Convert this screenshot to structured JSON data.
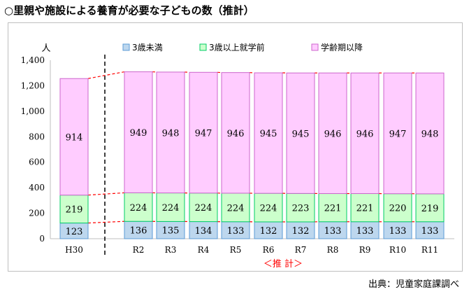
{
  "title": "○里親や施設による養育が必要な子どもの数（推計）",
  "source": "出典：児童家庭課調べ",
  "chart_data": {
    "type": "bar",
    "stacked": true,
    "categories": [
      "H30",
      "R2",
      "R3",
      "R4",
      "R5",
      "R6",
      "R7",
      "R8",
      "R9",
      "R10",
      "R11"
    ],
    "series": [
      {
        "name": "3歳未満",
        "values": [
          123,
          136,
          135,
          134,
          133,
          132,
          132,
          133,
          133,
          133,
          133
        ],
        "color": "#bdd7ee",
        "border": "#5b9bd5"
      },
      {
        "name": "3歳以上就学前",
        "values": [
          219,
          224,
          224,
          224,
          224,
          224,
          223,
          221,
          221,
          220,
          219
        ],
        "color": "#ccffcc",
        "border": "#00cc66"
      },
      {
        "name": "学齢期以降",
        "values": [
          914,
          949,
          948,
          947,
          946,
          945,
          945,
          946,
          946,
          947,
          948
        ],
        "color": "#ffccff",
        "border": "#cc66cc"
      }
    ],
    "ylabel": "人",
    "ylim": [
      0,
      1400
    ],
    "yticks": [
      "0",
      "200",
      "400",
      "600",
      "800",
      "1,000",
      "1,200",
      "1,400"
    ],
    "annotation": "＜推 計＞",
    "legend_position": "top",
    "grid": false
  }
}
